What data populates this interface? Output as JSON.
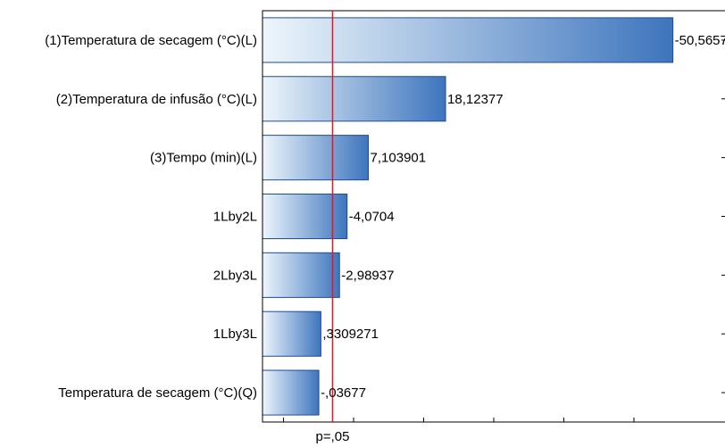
{
  "chart_data": {
    "type": "bar",
    "orientation": "horizontal",
    "categories": [
      "(1)Temperatura de secagem (°C)(L)",
      "(2)Temperatura de infusão (°C)(L)",
      "(3)Tempo (min)(L)",
      "1Lby2L",
      "2Lby3L",
      "1Lby3L",
      "Temperatura de secagem (°C)(Q)"
    ],
    "values": [
      50.5657,
      18.12377,
      7.103901,
      4.0704,
      2.98937,
      0.3309271,
      0.03677
    ],
    "value_labels": [
      "-50,5657",
      "18,12377",
      "7,103901",
      "-4,0704",
      "-2,98937",
      ",3309271",
      "-,03677"
    ],
    "reference_line": {
      "value": 2.0,
      "label": "p=,05",
      "color": "#e8141e"
    },
    "xlim": [
      -8,
      58
    ],
    "minor_ticks": [
      -5,
      5,
      15,
      25,
      35,
      45
    ],
    "grid": false,
    "colors": {
      "bar_light": "#eef6fc",
      "bar_dark": "#3d75bd",
      "bar_border": "#1f4a98",
      "axis": "#000000"
    }
  }
}
